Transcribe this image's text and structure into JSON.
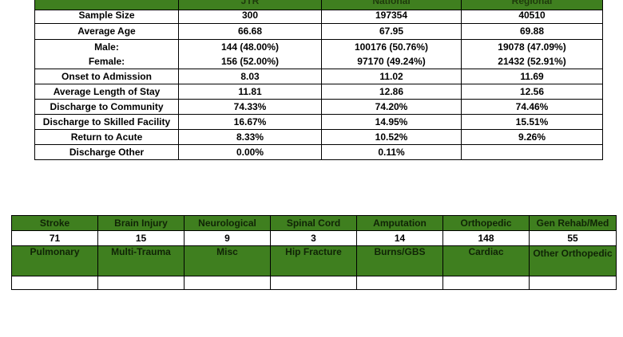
{
  "stats_table": {
    "columns": [
      "",
      "JTR",
      "National",
      "Regional"
    ],
    "rows": [
      {
        "label": "Sample Size",
        "jtr": "300",
        "national": "197354",
        "regional": "40510"
      },
      {
        "label": "Average Age",
        "jtr": "66.68",
        "national": "67.95",
        "regional": "69.88"
      },
      {
        "label": "Male:",
        "jtr": "144 (48.00%)",
        "national": "100176 (50.76%)",
        "regional": "19078 (47.09%)"
      },
      {
        "label": "Female:",
        "jtr": "156 (52.00%)",
        "national": "97170 (49.24%)",
        "regional": "21432 (52.91%)"
      },
      {
        "label": "Onset to Admission",
        "jtr": "8.03",
        "national": "11.02",
        "regional": "11.69"
      },
      {
        "label": "Average Length of Stay",
        "jtr": "11.81",
        "national": "12.86",
        "regional": "12.56"
      },
      {
        "label": "Discharge to Community",
        "jtr": "74.33%",
        "national": "74.20%",
        "regional": "74.46%"
      },
      {
        "label": "Discharge to Skilled Facility",
        "jtr": "16.67%",
        "national": "14.95%",
        "regional": "15.51%"
      },
      {
        "label": "Return to Acute",
        "jtr": "8.33%",
        "national": "10.52%",
        "regional": "9.26%"
      },
      {
        "label": "Discharge Other",
        "jtr": "0.00%",
        "national": "0.11%",
        "regional": ""
      }
    ]
  },
  "category_table": {
    "headers1": [
      "Stroke",
      "Brain Injury",
      "Neurological",
      "Spinal Cord",
      "Amputation",
      "Orthopedic",
      "Gen Rehab/Med"
    ],
    "values1": [
      "71",
      "15",
      "9",
      "3",
      "14",
      "148",
      "55"
    ],
    "headers2": [
      "Pulmonary",
      "Multi-Trauma",
      "Misc",
      "Hip Fracture",
      "Burns/GBS",
      "Cardiac",
      "Other Orthopedic"
    ],
    "values2": [
      "",
      "",
      "",
      "",
      "",
      "",
      ""
    ]
  },
  "colors": {
    "header_green": "#3f7f1f",
    "border": "#000000"
  }
}
